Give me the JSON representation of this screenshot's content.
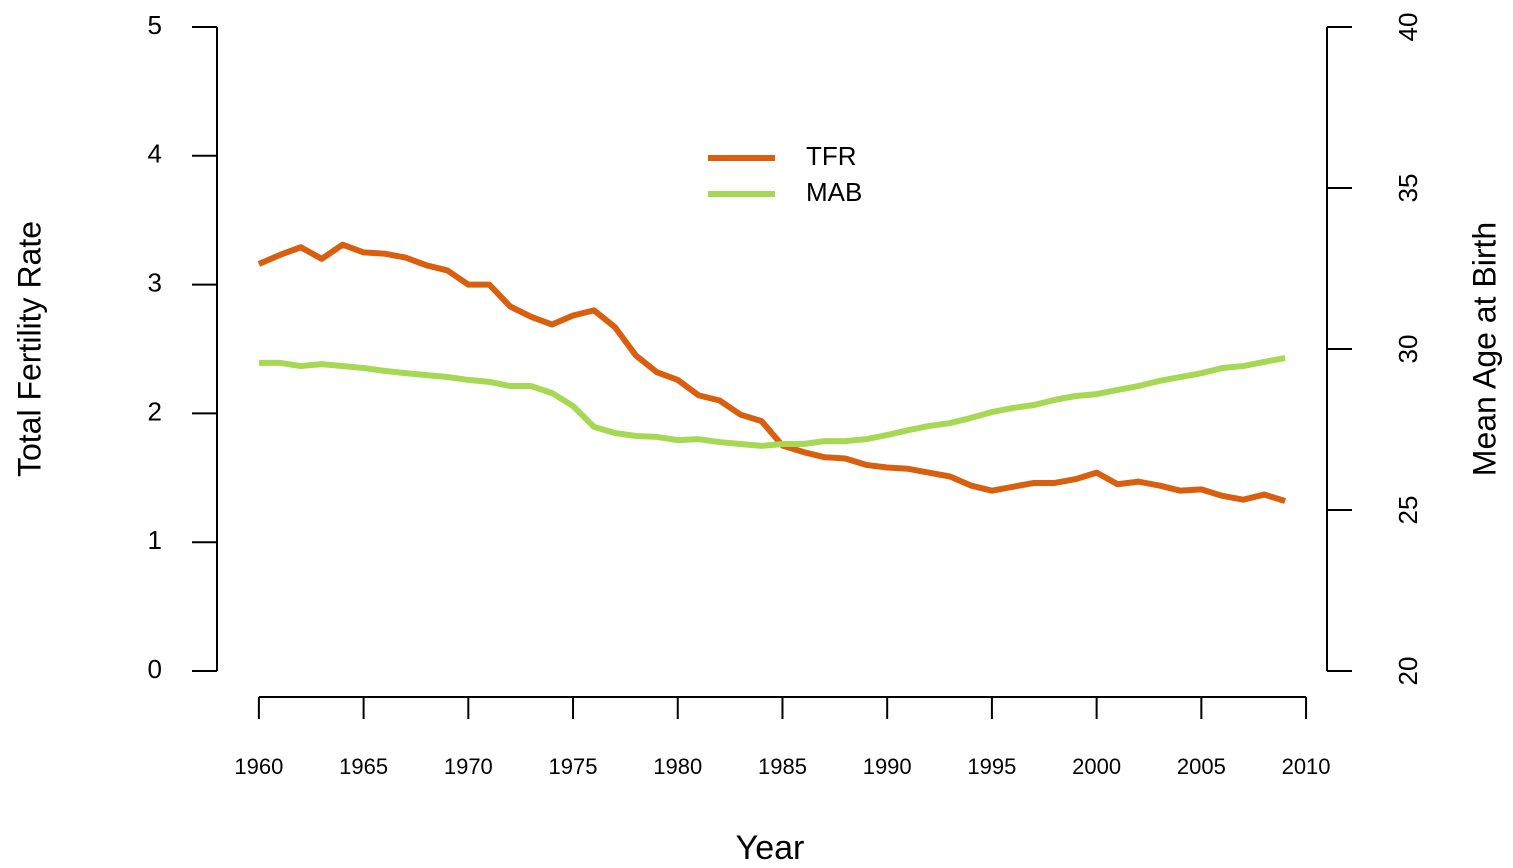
{
  "chart_data": {
    "type": "line",
    "x_label": "Year",
    "y_label": "Total Fertility Rate",
    "y2_label": "Mean Age at Birth",
    "x": [
      1960,
      1961,
      1962,
      1963,
      1964,
      1965,
      1966,
      1967,
      1968,
      1969,
      1970,
      1971,
      1972,
      1973,
      1974,
      1975,
      1976,
      1977,
      1978,
      1979,
      1980,
      1981,
      1982,
      1983,
      1984,
      1985,
      1986,
      1987,
      1988,
      1989,
      1990,
      1991,
      1992,
      1993,
      1994,
      1995,
      1996,
      1997,
      1998,
      1999,
      2000,
      2001,
      2002,
      2003,
      2004,
      2005,
      2006,
      2007,
      2008,
      2009
    ],
    "series": [
      {
        "name": "TFR",
        "color": "#d95f0e",
        "values": [
          3.16,
          3.23,
          3.29,
          3.2,
          3.31,
          3.25,
          3.24,
          3.21,
          3.15,
          3.11,
          3.0,
          3.0,
          2.83,
          2.75,
          2.69,
          2.76,
          2.8,
          2.67,
          2.45,
          2.32,
          2.26,
          2.14,
          2.1,
          1.99,
          1.94,
          1.75,
          1.7,
          1.66,
          1.65,
          1.6,
          1.58,
          1.57,
          1.54,
          1.51,
          1.44,
          1.4,
          1.43,
          1.46,
          1.46,
          1.49,
          1.54,
          1.45,
          1.47,
          1.44,
          1.4,
          1.41,
          1.36,
          1.33,
          1.37,
          1.32
        ]
      },
      {
        "name": "MAB",
        "color": "#a6d854",
        "axis": "y2",
        "values": [
          29.57,
          29.57,
          29.47,
          29.53,
          29.47,
          29.41,
          29.32,
          29.25,
          29.19,
          29.13,
          29.04,
          28.98,
          28.85,
          28.85,
          28.63,
          28.23,
          27.58,
          27.39,
          27.3,
          27.27,
          27.17,
          27.2,
          27.11,
          27.05,
          26.99,
          27.05,
          27.05,
          27.14,
          27.14,
          27.2,
          27.33,
          27.48,
          27.61,
          27.7,
          27.86,
          28.04,
          28.17,
          28.26,
          28.42,
          28.54,
          28.6,
          28.73,
          28.85,
          29.01,
          29.13,
          29.25,
          29.41,
          29.47,
          29.6,
          29.72
        ]
      }
    ],
    "xlim": [
      1958,
      2011
    ],
    "xticks": [
      1960,
      1965,
      1970,
      1975,
      1980,
      1985,
      1990,
      1995,
      2000,
      2005,
      2010
    ],
    "ylim": [
      0,
      5
    ],
    "yticks": [
      0,
      1,
      2,
      3,
      4,
      5
    ],
    "y2lim": [
      20,
      40
    ],
    "y2ticks": [
      20,
      25,
      30,
      35,
      40
    ],
    "grid": false,
    "legend": "top"
  }
}
